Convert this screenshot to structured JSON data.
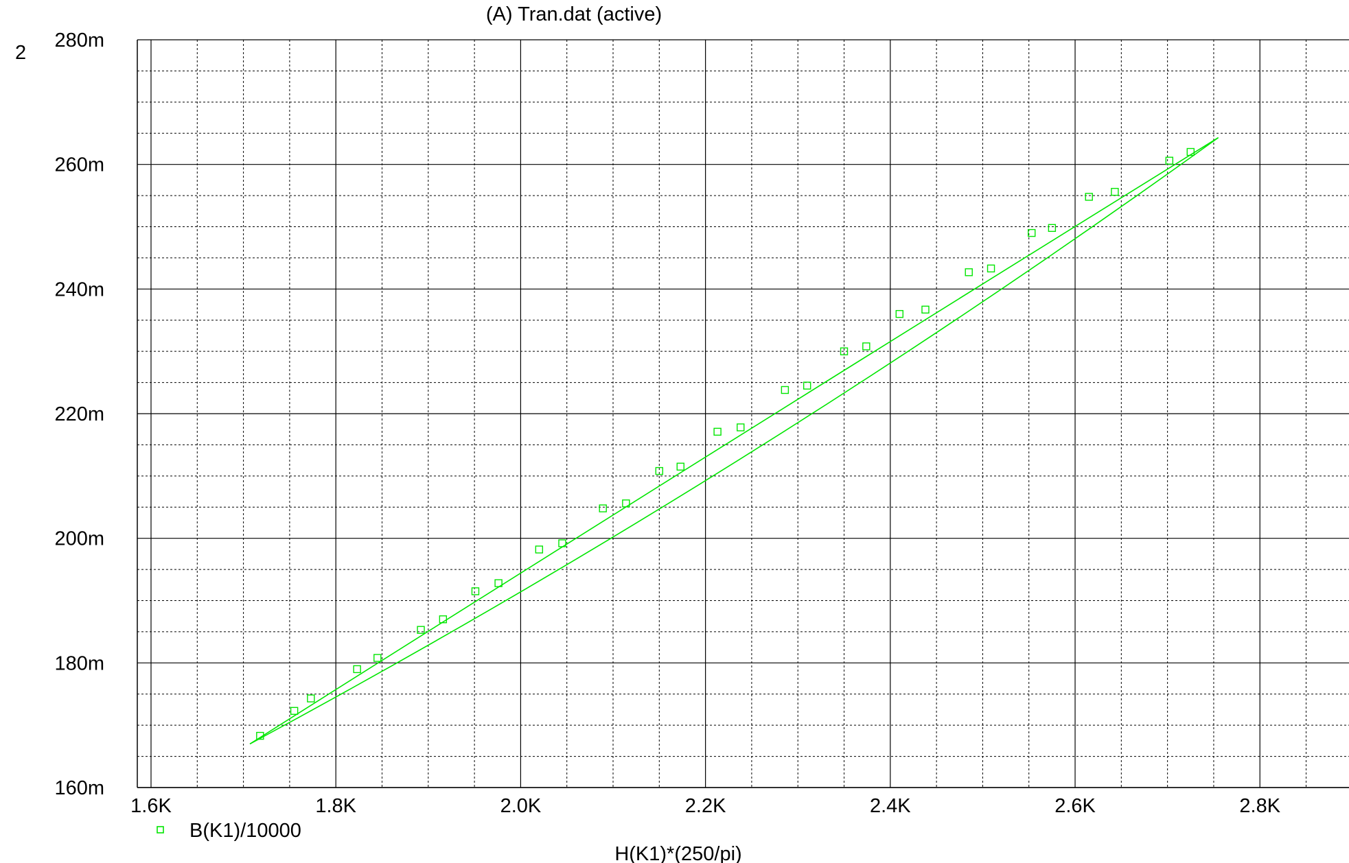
{
  "plot_number": "2",
  "chart_data": {
    "type": "line",
    "title": "(A) Tran.dat (active)",
    "xlabel": "H(K1)*(250/pi)",
    "ylabel": "",
    "xlim": [
      1600,
      2860
    ],
    "ylim": [
      0.16,
      0.28
    ],
    "x_ticks": [
      1600,
      1800,
      2000,
      2200,
      2400,
      2600,
      2800
    ],
    "x_tick_labels": [
      "1.6K",
      "1.8K",
      "2.0K",
      "2.2K",
      "2.4K",
      "2.6K",
      "2.8K"
    ],
    "y_ticks": [
      0.16,
      0.18,
      0.2,
      0.22,
      0.24,
      0.26,
      0.28
    ],
    "y_tick_labels": [
      "160m",
      "180m",
      "200m",
      "220m",
      "240m",
      "260m",
      "280m"
    ],
    "grid": true,
    "legend_position": "bottom-left",
    "series_color": "#00e600",
    "series": [
      {
        "name": "B(K1)/10000",
        "marker": "square",
        "lines": [
          {
            "x": [
              1707,
              2755
            ],
            "y": [
              0.167,
              0.2643
            ]
          },
          {
            "x": [
              1707,
              2755
            ],
            "y": [
              0.167,
              0.2643
            ],
            "bulge": 0.001
          }
        ],
        "markers": [
          {
            "x": 1718,
            "y": 0.1683
          },
          {
            "x": 1755,
            "y": 0.1723
          },
          {
            "x": 1773,
            "y": 0.1743
          },
          {
            "x": 1823,
            "y": 0.179
          },
          {
            "x": 1845,
            "y": 0.1808
          },
          {
            "x": 1892,
            "y": 0.1853
          },
          {
            "x": 1916,
            "y": 0.187
          },
          {
            "x": 1951,
            "y": 0.1915
          },
          {
            "x": 1976,
            "y": 0.1928
          },
          {
            "x": 2020,
            "y": 0.1982
          },
          {
            "x": 2045,
            "y": 0.1992
          },
          {
            "x": 2089,
            "y": 0.2048
          },
          {
            "x": 2114,
            "y": 0.2056
          },
          {
            "x": 2150,
            "y": 0.2108
          },
          {
            "x": 2173,
            "y": 0.2115
          },
          {
            "x": 2213,
            "y": 0.2171
          },
          {
            "x": 2238,
            "y": 0.2178
          },
          {
            "x": 2286,
            "y": 0.2238
          },
          {
            "x": 2310,
            "y": 0.2245
          },
          {
            "x": 2350,
            "y": 0.23
          },
          {
            "x": 2374,
            "y": 0.2308
          },
          {
            "x": 2410,
            "y": 0.236
          },
          {
            "x": 2438,
            "y": 0.2367
          },
          {
            "x": 2485,
            "y": 0.2427
          },
          {
            "x": 2509,
            "y": 0.2433
          },
          {
            "x": 2553,
            "y": 0.249
          },
          {
            "x": 2575,
            "y": 0.2498
          },
          {
            "x": 2615,
            "y": 0.2548
          },
          {
            "x": 2643,
            "y": 0.2556
          },
          {
            "x": 2702,
            "y": 0.2606
          },
          {
            "x": 2725,
            "y": 0.262
          }
        ]
      }
    ]
  }
}
